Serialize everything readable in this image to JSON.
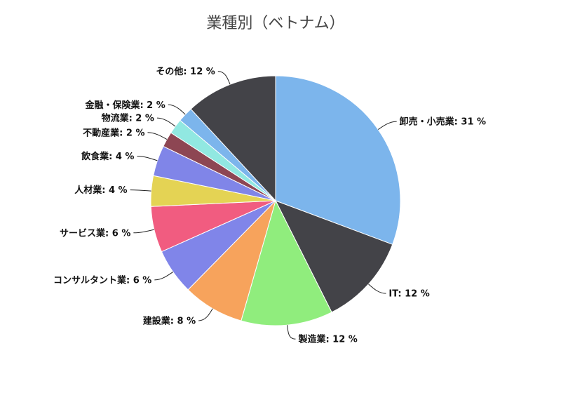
{
  "chart_data": {
    "type": "pie",
    "title": "業種別（ベトナム）",
    "unit": "%",
    "slices": [
      {
        "label": "卸売・小売業",
        "value": 31,
        "color": "#7cb5ec"
      },
      {
        "label": "IT",
        "value": 12,
        "color": "#434348"
      },
      {
        "label": "製造業",
        "value": 12,
        "color": "#90ed7d"
      },
      {
        "label": "建設業",
        "value": 8,
        "color": "#f7a35c"
      },
      {
        "label": "コンサルタント業",
        "value": 6,
        "color": "#8085e9"
      },
      {
        "label": "サービス業",
        "value": 6,
        "color": "#f15c80"
      },
      {
        "label": "人材業",
        "value": 4,
        "color": "#e4d354"
      },
      {
        "label": "飲食業",
        "value": 4,
        "color": "#8085e8"
      },
      {
        "label": "不動産業",
        "value": 2,
        "color": "#8d4653"
      },
      {
        "label": "物流業",
        "value": 2,
        "color": "#91e8e1"
      },
      {
        "label": "金融・保険業",
        "value": 2,
        "color": "#7cb5ec"
      },
      {
        "label": "その他",
        "value": 12,
        "color": "#434348"
      }
    ]
  }
}
